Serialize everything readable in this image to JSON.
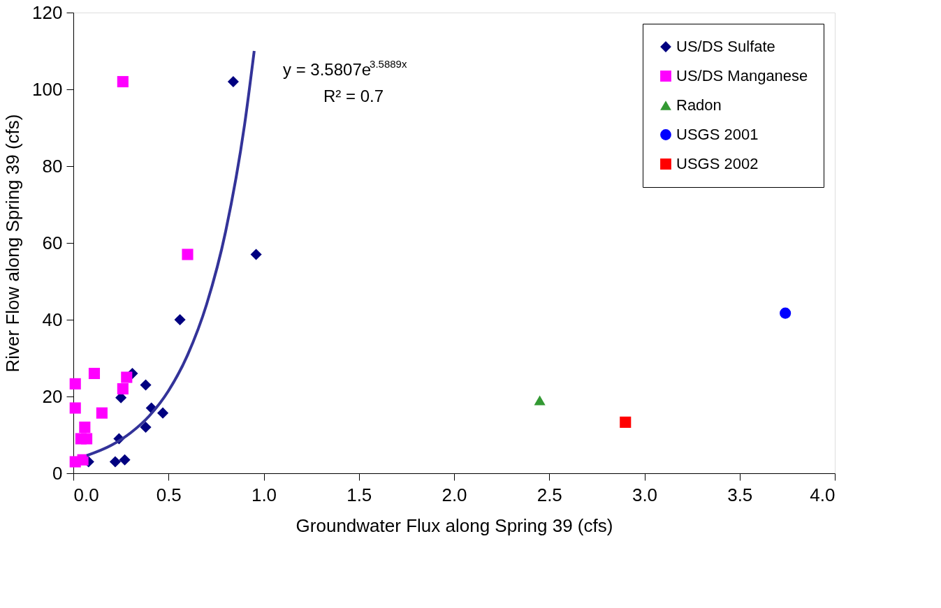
{
  "chart_data": {
    "type": "scatter",
    "xlabel": "Groundwater Flux along Spring 39 (cfs)",
    "ylabel": "River Flow along Spring 39 (cfs)",
    "xlim": [
      0,
      4
    ],
    "ylim": [
      0,
      120
    ],
    "xticks": [
      {
        "value": 0,
        "label": "0.0"
      },
      {
        "value": 0.5,
        "label": "0.5"
      },
      {
        "value": 1,
        "label": "1.0"
      },
      {
        "value": 1.5,
        "label": "1.5"
      },
      {
        "value": 2,
        "label": "2.0"
      },
      {
        "value": 2.5,
        "label": "2.5"
      },
      {
        "value": 3,
        "label": "3.0"
      },
      {
        "value": 3.5,
        "label": "3.5"
      },
      {
        "value": 4,
        "label": "4.0"
      }
    ],
    "yticks": [
      0,
      20,
      40,
      60,
      80,
      100,
      120
    ],
    "grid": false,
    "legend": "top right",
    "annotations": [
      "y = 3.5807e$^{3.5889x}$",
      "R² = 0.7"
    ],
    "series": [
      {
        "name": "US/DS Sulfate",
        "color": "#000080",
        "marker": "diamond",
        "x": [
          0.84,
          0.96,
          0.56,
          0.31,
          0.38,
          0.25,
          0.41,
          0.47,
          0.38,
          0.24,
          0.22,
          0.27,
          0.08
        ],
        "values": [
          102,
          57,
          40,
          26,
          23,
          19.7,
          17,
          15.7,
          12,
          9,
          3,
          3.5,
          3
        ]
      },
      {
        "name": "US/DS Manganese",
        "color": "#ff00ff",
        "marker": "square",
        "x": [
          0.26,
          0.6,
          0.01,
          0.11,
          0.28,
          0.26,
          0.01,
          0.15,
          0.06,
          0.04,
          0.07,
          0.01,
          0.05
        ],
        "values": [
          102,
          57,
          23.3,
          26,
          25,
          22,
          17,
          15.7,
          12,
          9,
          9,
          3,
          3.5
        ]
      },
      {
        "name": "Radon",
        "color": "#339933",
        "marker": "triangle",
        "x": [
          2.45
        ],
        "values": [
          19
        ]
      },
      {
        "name": "USGS 2001",
        "color": "#0000ff",
        "marker": "circle",
        "x": [
          3.74
        ],
        "values": [
          41.7
        ]
      },
      {
        "name": "USGS 2002",
        "color": "#ff0000",
        "marker": "square",
        "x": [
          2.9
        ],
        "values": [
          13.3
        ]
      },
      {
        "type": "line",
        "color": "#333399",
        "line_style": "solid",
        "x": [
          0.07,
          0.2,
          0.3,
          0.4,
          0.5,
          0.6,
          0.7,
          0.8,
          0.9,
          0.95
        ],
        "values": [
          4.6,
          7.3,
          10.5,
          15,
          21.5,
          30.8,
          44,
          63,
          91,
          110
        ]
      }
    ]
  }
}
